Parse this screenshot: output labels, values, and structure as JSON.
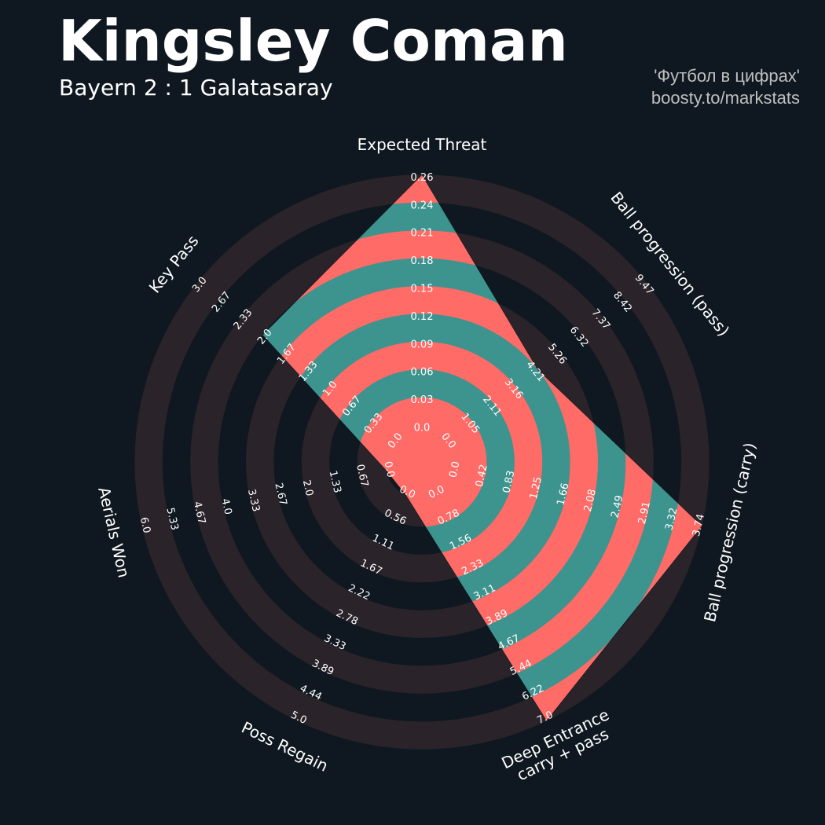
{
  "header": {
    "title": "Kingsley Coman",
    "subtitle": "Bayern 2 : 1 Galatasaray",
    "credit_line1": "'Футбол в цифрах'",
    "credit_line2": "boosty.to/markstats"
  },
  "colors": {
    "background": "#0f1820",
    "ring_band": "#2a2329",
    "player_fill": "#3d938e",
    "player_band": "#ff6b67",
    "label_text": "#ffffff"
  },
  "chart_data": {
    "type": "radar",
    "axes": [
      {
        "label": "Expected Threat",
        "value": 0.26,
        "ticks": [
          "0.0",
          "0.03",
          "0.06",
          "0.09",
          "0.12",
          "0.15",
          "0.18",
          "0.21",
          "0.24",
          "0.26"
        ]
      },
      {
        "label": "Ball progression (pass)",
        "value": 4.21,
        "ticks": [
          "0.0",
          "1.05",
          "2.11",
          "3.16",
          "4.21",
          "5.26",
          "6.32",
          "7.37",
          "8.42",
          "9.47"
        ]
      },
      {
        "label": "Ball progression (carry)",
        "value": 3.74,
        "ticks": [
          "0.0",
          "0.42",
          "0.83",
          "1.25",
          "1.66",
          "2.08",
          "2.49",
          "2.91",
          "3.32",
          "3.74"
        ]
      },
      {
        "label": "Deep Entrance\ncarry + pass",
        "value": 7.0,
        "ticks": [
          "0.0",
          "0.78",
          "1.56",
          "2.33",
          "3.11",
          "3.89",
          "4.67",
          "5.44",
          "6.22",
          "7.0"
        ]
      },
      {
        "label": "Poss Regain",
        "value": 0.0,
        "ticks": [
          "0.0",
          "0.56",
          "1.11",
          "1.67",
          "2.22",
          "2.78",
          "3.33",
          "3.89",
          "4.44",
          "5.0"
        ]
      },
      {
        "label": "Aerials Won",
        "value": 0.0,
        "ticks": [
          "0.0",
          "0.67",
          "1.33",
          "2.0",
          "2.67",
          "3.33",
          "4.0",
          "4.67",
          "5.33",
          "6.0"
        ]
      },
      {
        "label": "Key Pass",
        "value": 2.0,
        "ticks": [
          "0.0",
          "0.33",
          "0.67",
          "1.0",
          "1.33",
          "1.67",
          "2.0",
          "2.33",
          "2.67",
          "3.0"
        ]
      }
    ]
  }
}
